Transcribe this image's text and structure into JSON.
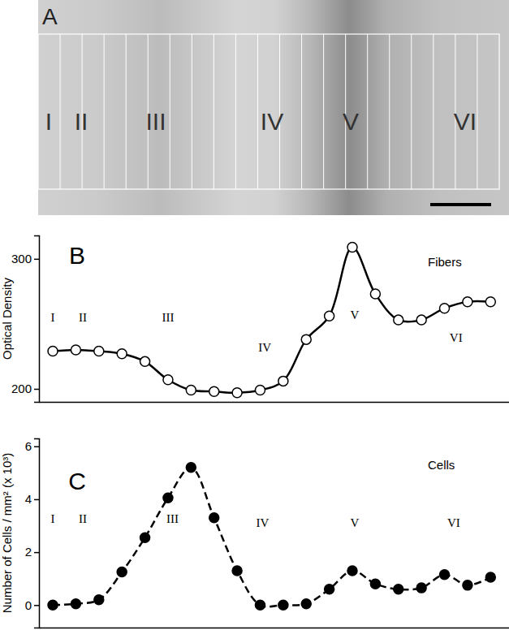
{
  "chart_data": [
    {
      "type": "line",
      "title": "B",
      "y_label": "Optical Density",
      "x": [
        1,
        2,
        3,
        4,
        5,
        6,
        7,
        8,
        9,
        10,
        11,
        12,
        13,
        14,
        15,
        16,
        17,
        18,
        19,
        20
      ],
      "series": [
        {
          "name": "Fibers",
          "color": "#000000",
          "marker": "circle-open",
          "line_style": "solid",
          "values": [
            229,
            230,
            229,
            227,
            221,
            207,
            199,
            198,
            197,
            199,
            206,
            238,
            256,
            309,
            273,
            253,
            253,
            262,
            267,
            267
          ]
        }
      ],
      "xlim": [
        0.4,
        20.8
      ],
      "ylim": [
        190,
        318
      ],
      "yticks": [
        200,
        300
      ],
      "tick_labels": "y",
      "legend": "upper right",
      "annotations": [
        {
          "text": "I",
          "x": 1,
          "y": 252
        },
        {
          "text": "II",
          "x": 2.3,
          "y": 252
        },
        {
          "text": "III",
          "x": 6,
          "y": 252
        },
        {
          "text": "IV",
          "x": 10.2,
          "y": 229
        },
        {
          "text": "V",
          "x": 14.1,
          "y": 254
        },
        {
          "text": "VI",
          "x": 18.5,
          "y": 236
        }
      ]
    },
    {
      "type": "line",
      "title": "C",
      "y_label": "Number of Cells / mm² (x 10³)",
      "x": [
        1,
        2,
        3,
        4,
        5,
        6,
        7,
        8,
        9,
        10,
        11,
        12,
        13,
        14,
        15,
        16,
        17,
        18,
        19,
        20
      ],
      "series": [
        {
          "name": "Cells",
          "color": "#000000",
          "marker": "circle",
          "line_style": "dashed",
          "values": [
            0,
            0.05,
            0.2,
            1.25,
            2.55,
            4.05,
            5.2,
            3.3,
            1.3,
            0,
            0,
            0.05,
            0.6,
            1.3,
            0.8,
            0.6,
            0.65,
            1.15,
            0.75,
            1.05
          ]
        }
      ],
      "xlim": [
        0.4,
        20.8
      ],
      "ylim": [
        -0.85,
        6.3
      ],
      "yticks": [
        0,
        2,
        4,
        6
      ],
      "tick_labels": "y",
      "legend": "upper right",
      "annotations": [
        {
          "text": "I",
          "x": 1,
          "y": 3.1
        },
        {
          "text": "II",
          "x": 2.3,
          "y": 3.1
        },
        {
          "text": "III",
          "x": 6.2,
          "y": 3.1
        },
        {
          "text": "IV",
          "x": 10.1,
          "y": 2.97
        },
        {
          "text": "V",
          "x": 14.1,
          "y": 2.97
        },
        {
          "text": "VI",
          "x": 18.4,
          "y": 2.97
        }
      ]
    }
  ],
  "image": {
    "label": "A",
    "layer_labels": [
      "I",
      "II",
      "III",
      "IV",
      "V",
      "VI"
    ]
  }
}
